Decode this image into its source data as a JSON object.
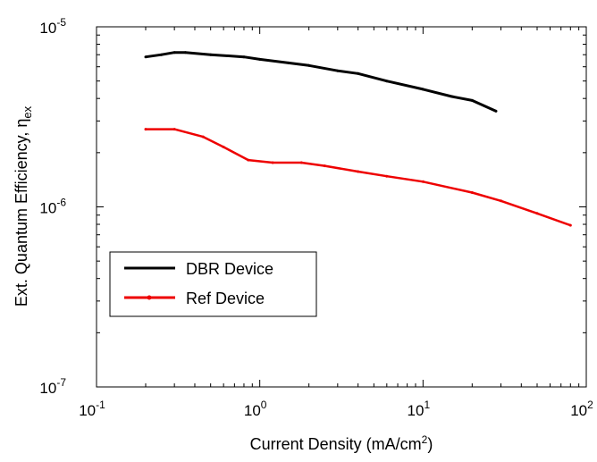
{
  "chart_data": {
    "type": "line",
    "xscale": "log",
    "yscale": "log",
    "xlim": [
      0.1,
      100
    ],
    "ylim": [
      1e-07,
      1e-05
    ],
    "xlabel": "Current Density (mA/cm²)",
    "xlabel_parts": {
      "main": "Current Density (mA/cm",
      "sup": "2",
      "end": ")"
    },
    "ylabel": "Ext. Quantum Efficiency, η_ex",
    "ylabel_parts": {
      "main": "Ext. Quantum Efficiency, η",
      "sub": "ex"
    },
    "xticks": [
      {
        "value": 0.1,
        "base": "10",
        "exp": "-1"
      },
      {
        "value": 1,
        "base": "10",
        "exp": "0"
      },
      {
        "value": 10,
        "base": "10",
        "exp": "1"
      },
      {
        "value": 100,
        "base": "10",
        "exp": "2"
      }
    ],
    "yticks": [
      {
        "value": 1e-07,
        "base": "10",
        "exp": "-7"
      },
      {
        "value": 1e-06,
        "base": "10",
        "exp": "-6"
      },
      {
        "value": 1e-05,
        "base": "10",
        "exp": "-5"
      }
    ],
    "grid": false,
    "legend_position": "lower-left",
    "series": [
      {
        "name": "DBR Device",
        "color": "#000000",
        "marker": "none",
        "points": [
          [
            0.2,
            6.8e-06
          ],
          [
            0.25,
            7e-06
          ],
          [
            0.3,
            7.2e-06
          ],
          [
            0.35,
            7.2e-06
          ],
          [
            0.5,
            7e-06
          ],
          [
            0.8,
            6.8e-06
          ],
          [
            1.0,
            6.6e-06
          ],
          [
            1.5,
            6.3e-06
          ],
          [
            2.0,
            6.1e-06
          ],
          [
            3.0,
            5.7e-06
          ],
          [
            4.0,
            5.5e-06
          ],
          [
            6.0,
            5e-06
          ],
          [
            10.0,
            4.5e-06
          ],
          [
            15.0,
            4.1e-06
          ],
          [
            20.0,
            3.9e-06
          ],
          [
            28.0,
            3.4e-06
          ]
        ]
      },
      {
        "name": "Ref Device",
        "color": "#ee0000",
        "marker": "dot",
        "points": [
          [
            0.2,
            2.7e-06
          ],
          [
            0.3,
            2.7e-06
          ],
          [
            0.45,
            2.45e-06
          ],
          [
            0.6,
            2.15e-06
          ],
          [
            0.85,
            1.82e-06
          ],
          [
            1.2,
            1.76e-06
          ],
          [
            1.8,
            1.76e-06
          ],
          [
            2.5,
            1.69e-06
          ],
          [
            4.0,
            1.57e-06
          ],
          [
            6.0,
            1.48e-06
          ],
          [
            10.0,
            1.38e-06
          ],
          [
            20.0,
            1.2e-06
          ],
          [
            30.0,
            1.08e-06
          ],
          [
            50.0,
            9.2e-07
          ],
          [
            80.0,
            7.9e-07
          ]
        ]
      }
    ]
  }
}
